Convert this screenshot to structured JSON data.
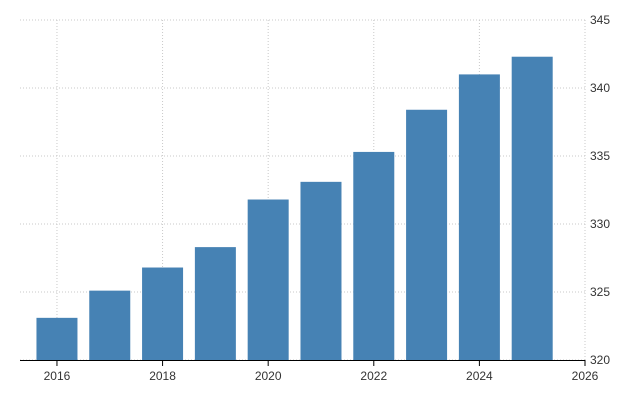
{
  "chart_data": {
    "type": "bar",
    "x": [
      2016,
      2017,
      2018,
      2019,
      2020,
      2021,
      2022,
      2023,
      2024,
      2025
    ],
    "values": [
      323.1,
      325.1,
      326.8,
      328.3,
      331.8,
      333.1,
      335.3,
      338.4,
      341.0,
      342.3
    ],
    "xlim": [
      2015.3,
      2026
    ],
    "ylim": [
      320,
      345
    ],
    "x_ticks": [
      2016,
      2018,
      2020,
      2022,
      2024,
      2026
    ],
    "y_ticks": [
      320,
      325,
      330,
      335,
      340,
      345
    ],
    "x_tick_labels": [
      "2016",
      "2018",
      "2020",
      "2022",
      "2024",
      "2026"
    ],
    "y_tick_labels": [
      "320",
      "325",
      "330",
      "335",
      "340",
      "345"
    ],
    "y_axis_side": "right",
    "grid": true,
    "legend": "none",
    "title": "",
    "xlabel": "",
    "ylabel": "",
    "colors": {
      "bar": "#4682b4",
      "grid": "#c8c8c8",
      "axis": "#000000",
      "text": "#333333"
    }
  }
}
